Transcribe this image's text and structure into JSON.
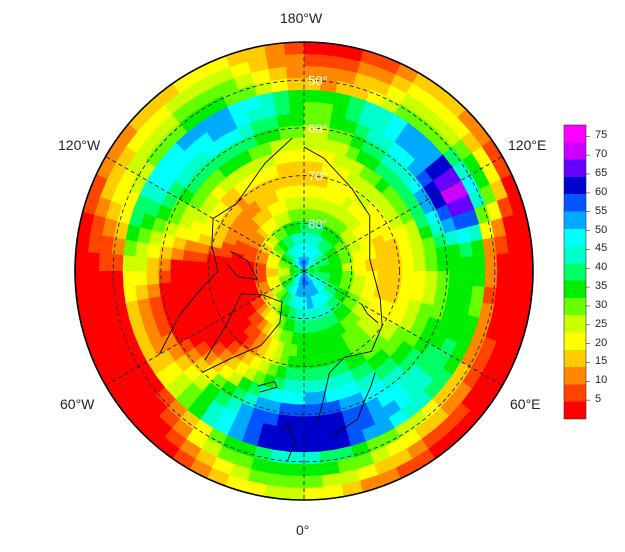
{
  "map": {
    "projection": "north-polar-stereographic",
    "longitude_labels": [
      {
        "key": "lon-180w",
        "text": "180°W"
      },
      {
        "key": "lon-120e",
        "text": "120°E"
      },
      {
        "key": "lon-60e",
        "text": "60°E"
      },
      {
        "key": "lon-0",
        "text": "0°"
      },
      {
        "key": "lon-60w",
        "text": "60°W"
      },
      {
        "key": "lon-120w",
        "text": "120°W"
      }
    ],
    "latitude_labels": [
      "50°",
      "60°",
      "70°",
      "80°"
    ],
    "latitude_circles": [
      50,
      60,
      70,
      80
    ],
    "meridians_deg": [
      0,
      60,
      120,
      180,
      240,
      300
    ]
  },
  "colorbar": {
    "min": 0,
    "max": 78,
    "ticks": [
      "75",
      "70",
      "65",
      "60",
      "55",
      "50",
      "45",
      "40",
      "35",
      "30",
      "25",
      "20",
      "15",
      "10",
      "5"
    ],
    "colors": [
      "#ff0000",
      "#ff4400",
      "#ff8800",
      "#ffcc00",
      "#ffff00",
      "#ccff00",
      "#66ff00",
      "#00ee00",
      "#00ff66",
      "#00ffcc",
      "#00ffff",
      "#00aaff",
      "#0055ff",
      "#0000cc",
      "#6600ff",
      "#cc00ff",
      "#ff00ff"
    ]
  }
}
